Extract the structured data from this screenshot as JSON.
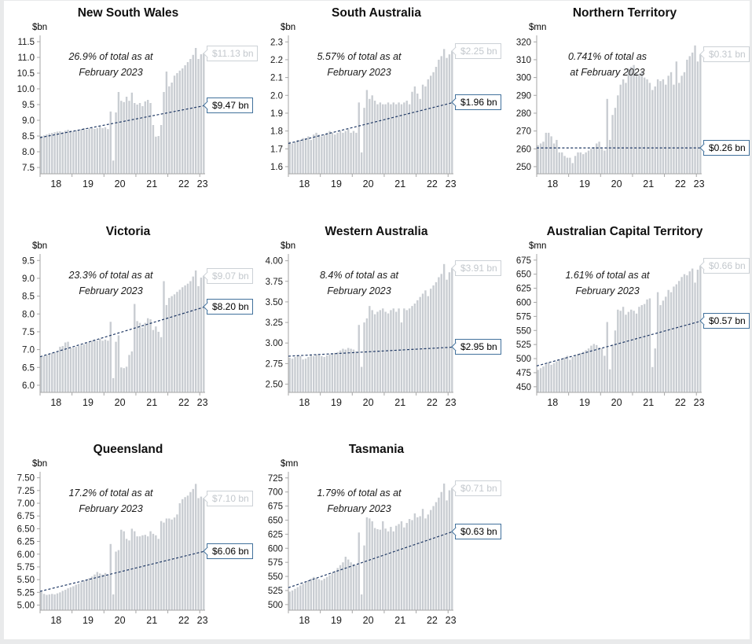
{
  "colors": {
    "bar": "#c9cdd2",
    "trend_line": "#1f3864",
    "axis": "#a6a6a6",
    "tick_text": "#1a1a1a",
    "latest_label_gray": "#c3c8cd",
    "trend_box_border_blue": "#41719c"
  },
  "chart_data": [
    {
      "title": "New South Wales",
      "unit": "$bn",
      "annotation_line1": "26.9% of total as at",
      "annotation_line2": "February 2023",
      "latest_label": "$11.13 bn",
      "trend_label": "$9.47 bn",
      "chart": {
        "type": "bar",
        "x_tick_labels": [
          "18",
          "19",
          "20",
          "21",
          "22",
          "23"
        ],
        "months_start": "Jan 2018",
        "months_end": "Feb 2023",
        "ticks": {
          "min": 7.5,
          "max": 11.5,
          "step": 0.5,
          "decimals": 1
        },
        "trend": {
          "start": 8.45,
          "end": 9.47
        },
        "values": [
          8.5,
          8.52,
          8.55,
          8.58,
          8.6,
          8.62,
          8.64,
          8.65,
          8.63,
          8.67,
          8.7,
          8.68,
          8.65,
          8.68,
          8.7,
          8.72,
          8.75,
          8.7,
          8.74,
          8.76,
          8.73,
          8.75,
          8.8,
          8.75,
          8.78,
          8.72,
          9.28,
          7.72,
          9.25,
          9.9,
          9.62,
          9.58,
          9.75,
          9.62,
          9.88,
          9.55,
          9.5,
          9.55,
          9.45,
          9.6,
          9.65,
          9.55,
          8.85,
          8.48,
          8.5,
          8.85,
          9.9,
          10.55,
          10.08,
          10.2,
          10.42,
          10.5,
          10.58,
          10.65,
          10.75,
          10.85,
          10.95,
          11.08,
          11.3,
          10.95,
          11.1,
          11.13
        ]
      }
    },
    {
      "title": "South Australia",
      "unit": "$bn",
      "annotation_line1": "5.57% of total as at",
      "annotation_line2": "February 2023",
      "latest_label": "$2.25 bn",
      "trend_label": "$1.96 bn",
      "chart": {
        "type": "bar",
        "x_tick_labels": [
          "18",
          "19",
          "20",
          "21",
          "22",
          "23"
        ],
        "months_start": "Jan 2018",
        "months_end": "Feb 2023",
        "ticks": {
          "min": 1.6,
          "max": 2.3,
          "step": 0.1,
          "decimals": 1
        },
        "trend": {
          "start": 1.73,
          "end": 1.96
        },
        "values": [
          1.74,
          1.73,
          1.74,
          1.75,
          1.75,
          1.76,
          1.76,
          1.77,
          1.75,
          1.78,
          1.79,
          1.78,
          1.77,
          1.78,
          1.79,
          1.8,
          1.79,
          1.78,
          1.79,
          1.8,
          1.79,
          1.8,
          1.81,
          1.79,
          1.8,
          1.79,
          1.96,
          1.68,
          1.93,
          2.03,
          1.98,
          2.0,
          1.97,
          1.95,
          1.96,
          1.95,
          1.95,
          1.96,
          1.95,
          1.96,
          1.95,
          1.96,
          1.95,
          1.96,
          1.97,
          1.95,
          2.02,
          2.05,
          2.01,
          1.98,
          2.06,
          2.05,
          2.09,
          2.11,
          2.13,
          2.16,
          2.2,
          2.22,
          2.26,
          2.21,
          2.23,
          2.25
        ]
      }
    },
    {
      "title": "Northern Territory",
      "unit": "$mn",
      "annotation_line1": "0.741% of total as",
      "annotation_line2": "at February 2023",
      "latest_label": "$0.31 bn",
      "trend_label": "$0.26 bn",
      "chart": {
        "type": "bar",
        "x_tick_labels": [
          "18",
          "19",
          "20",
          "21",
          "22",
          "23"
        ],
        "months_start": "Jan 2018",
        "months_end": "Feb 2023",
        "ticks": {
          "min": 250,
          "max": 320,
          "step": 10,
          "decimals": 0
        },
        "trend": {
          "start": 260.5,
          "end": 260.5
        },
        "values": [
          262,
          263,
          264,
          269,
          269,
          267,
          263,
          265,
          258,
          258,
          256,
          255,
          255,
          252,
          256,
          258,
          258,
          257,
          258,
          259,
          260,
          261,
          263,
          264,
          260,
          259,
          288,
          265,
          279,
          283,
          290,
          296,
          299,
          297,
          305,
          306,
          307,
          303,
          302,
          303,
          300,
          299,
          297,
          293,
          295,
          299,
          298,
          299,
          296,
          301,
          303,
          296,
          309,
          297,
          301,
          303,
          310,
          312,
          314,
          318,
          309,
          313
        ]
      }
    },
    {
      "title": "Victoria",
      "unit": "$bn",
      "annotation_line1": "23.3% of total as at",
      "annotation_line2": "February 2023",
      "latest_label": "$9.07 bn",
      "trend_label": "$8.20 bn",
      "chart": {
        "type": "bar",
        "x_tick_labels": [
          "18",
          "19",
          "20",
          "21",
          "22",
          "23"
        ],
        "months_start": "Jan 2018",
        "months_end": "Feb 2023",
        "ticks": {
          "min": 6.0,
          "max": 9.5,
          "step": 0.5,
          "decimals": 1
        },
        "trend": {
          "start": 6.8,
          "end": 8.2
        },
        "values": [
          6.8,
          6.82,
          6.85,
          6.88,
          6.9,
          6.92,
          6.95,
          7.08,
          7.1,
          7.2,
          7.22,
          7.05,
          7.05,
          7.08,
          7.1,
          7.12,
          7.15,
          7.18,
          7.2,
          7.25,
          7.28,
          7.25,
          7.3,
          7.25,
          7.28,
          7.25,
          7.78,
          6.2,
          7.22,
          7.4,
          6.5,
          6.48,
          6.52,
          6.85,
          6.95,
          8.28,
          7.8,
          7.75,
          7.62,
          7.75,
          7.88,
          7.85,
          7.55,
          7.65,
          7.5,
          7.35,
          8.92,
          8.25,
          8.45,
          8.5,
          8.55,
          8.62,
          8.68,
          8.75,
          8.8,
          8.85,
          8.92,
          9.05,
          9.22,
          8.78,
          9.02,
          9.07
        ]
      }
    },
    {
      "title": "Western Australia",
      "unit": "$bn",
      "annotation_line1": "8.4% of total as at",
      "annotation_line2": "February 2023",
      "latest_label": "$3.91 bn",
      "trend_label": "$2.95 bn",
      "chart": {
        "type": "bar",
        "x_tick_labels": [
          "18",
          "19",
          "20",
          "21",
          "22",
          "23"
        ],
        "months_start": "Jan 2018",
        "months_end": "Feb 2023",
        "ticks": {
          "min": 2.5,
          "max": 4.0,
          "step": 0.25,
          "decimals": 2
        },
        "trend": {
          "start": 2.84,
          "end": 2.95
        },
        "values": [
          2.82,
          2.81,
          2.83,
          2.85,
          2.84,
          2.8,
          2.81,
          2.83,
          2.85,
          2.84,
          2.86,
          2.85,
          2.84,
          2.83,
          2.85,
          2.86,
          2.87,
          2.88,
          2.89,
          2.91,
          2.93,
          2.92,
          2.94,
          2.93,
          2.92,
          2.9,
          3.22,
          2.71,
          3.25,
          3.3,
          3.45,
          3.4,
          3.35,
          3.38,
          3.4,
          3.42,
          3.38,
          3.36,
          3.4,
          3.42,
          3.38,
          3.42,
          3.25,
          3.42,
          3.4,
          3.42,
          3.45,
          3.48,
          3.52,
          3.56,
          3.6,
          3.64,
          3.57,
          3.66,
          3.7,
          3.74,
          3.8,
          3.84,
          3.96,
          3.77,
          3.86,
          3.91
        ]
      }
    },
    {
      "title": "Australian Capital Territory",
      "unit": "$mn",
      "annotation_line1": "1.61% of total as at",
      "annotation_line2": "February 2023",
      "latest_label": "$0.66 bn",
      "trend_label": "$0.57 bn",
      "chart": {
        "type": "bar",
        "x_tick_labels": [
          "18",
          "19",
          "20",
          "21",
          "22",
          "23"
        ],
        "months_start": "Jan 2018",
        "months_end": "Feb 2023",
        "ticks": {
          "min": 450,
          "max": 675,
          "step": 25,
          "decimals": 0
        },
        "trend": {
          "start": 487,
          "end": 567
        },
        "values": [
          480,
          483,
          486,
          490,
          493,
          489,
          492,
          495,
          498,
          500,
          502,
          505,
          498,
          503,
          506,
          508,
          510,
          512,
          515,
          518,
          523,
          526,
          524,
          520,
          518,
          505,
          565,
          481,
          525,
          550,
          587,
          585,
          592,
          578,
          583,
          587,
          585,
          580,
          592,
          595,
          597,
          605,
          607,
          485,
          518,
          618,
          595,
          603,
          610,
          622,
          618,
          628,
          632,
          638,
          645,
          650,
          648,
          655,
          660,
          635,
          658,
          665
        ]
      }
    },
    {
      "title": "Queensland",
      "unit": "$bn",
      "annotation_line1": "17.2% of total as at",
      "annotation_line2": "February 2023",
      "latest_label": "$7.10 bn",
      "trend_label": "$6.06 bn",
      "chart": {
        "type": "bar",
        "x_tick_labels": [
          "18",
          "19",
          "20",
          "21",
          "22",
          "23"
        ],
        "months_start": "Jan 2018",
        "months_end": "Feb 2023",
        "ticks": {
          "min": 5.0,
          "max": 7.5,
          "step": 0.25,
          "decimals": 2
        },
        "trend": {
          "start": 5.27,
          "end": 6.06
        },
        "values": [
          5.27,
          5.22,
          5.2,
          5.21,
          5.22,
          5.21,
          5.23,
          5.25,
          5.28,
          5.3,
          5.33,
          5.35,
          5.37,
          5.4,
          5.42,
          5.45,
          5.48,
          5.5,
          5.53,
          5.56,
          5.6,
          5.65,
          5.62,
          5.6,
          5.63,
          5.6,
          6.2,
          5.21,
          6.05,
          6.08,
          6.48,
          6.45,
          6.3,
          6.27,
          6.5,
          6.45,
          6.35,
          6.35,
          6.37,
          6.38,
          6.35,
          6.45,
          6.4,
          6.37,
          6.3,
          6.65,
          6.62,
          6.7,
          6.7,
          6.68,
          6.72,
          6.78,
          7.0,
          7.08,
          7.12,
          7.15,
          7.22,
          7.28,
          7.38,
          7.1,
          7.13,
          7.1
        ]
      }
    },
    {
      "title": "Tasmania",
      "unit": "$mn",
      "annotation_line1": "1.79% of total as at",
      "annotation_line2": "February 2023",
      "latest_label": "$0.71 bn",
      "trend_label": "$0.63 bn",
      "chart": {
        "type": "bar",
        "x_tick_labels": [
          "18",
          "19",
          "20",
          "21",
          "22",
          "23"
        ],
        "months_start": "Jan 2018",
        "months_end": "Feb 2023",
        "ticks": {
          "min": 500,
          "max": 725,
          "step": 25,
          "decimals": 0
        },
        "trend": {
          "start": 530,
          "end": 630
        },
        "values": [
          523,
          525,
          528,
          531,
          534,
          537,
          540,
          543,
          546,
          549,
          547,
          545,
          543,
          546,
          549,
          552,
          556,
          560,
          565,
          570,
          575,
          585,
          580,
          575,
          572,
          570,
          628,
          518,
          605,
          655,
          653,
          648,
          636,
          634,
          633,
          648,
          635,
          630,
          638,
          630,
          640,
          643,
          648,
          637,
          645,
          652,
          650,
          662,
          655,
          657,
          670,
          653,
          660,
          668,
          675,
          682,
          690,
          700,
          715,
          685,
          703,
          707
        ]
      }
    }
  ]
}
